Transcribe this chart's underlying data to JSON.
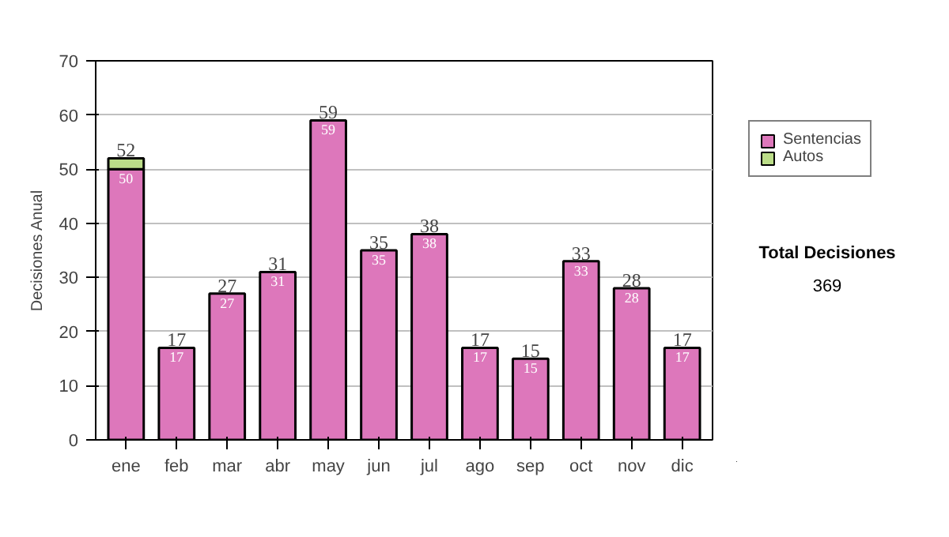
{
  "chart_data": {
    "type": "bar",
    "stacked": true,
    "ylabel": "Decisiones Anual",
    "categories": [
      "ene",
      "feb",
      "mar",
      "abr",
      "may",
      "jun",
      "jul",
      "ago",
      "sep",
      "oct",
      "nov",
      "dic"
    ],
    "series": [
      {
        "name": "Sentencias",
        "color": "#dd77bb",
        "values": [
          50,
          17,
          27,
          31,
          59,
          35,
          38,
          17,
          15,
          33,
          28,
          17
        ],
        "value_labels": [
          "50",
          "17",
          "27",
          "31",
          "59",
          "35",
          "38",
          "17",
          "15",
          "33",
          "28",
          "17"
        ]
      },
      {
        "name": "Autos",
        "color": "#bbdd88",
        "values": [
          2,
          null,
          null,
          null,
          null,
          null,
          null,
          null,
          null,
          null,
          null,
          null
        ]
      }
    ],
    "totals": [
      "52",
      "17",
      "27",
      "31",
      "59",
      "35",
      "38",
      "17",
      "15",
      "33",
      "28",
      "17"
    ],
    "ylim": [
      0,
      70
    ],
    "yticks": [
      0,
      10,
      20,
      30,
      40,
      50,
      60,
      70
    ],
    "grid": "y",
    "legend": "right",
    "annotations": [
      "Total Decisiones",
      "369"
    ]
  }
}
